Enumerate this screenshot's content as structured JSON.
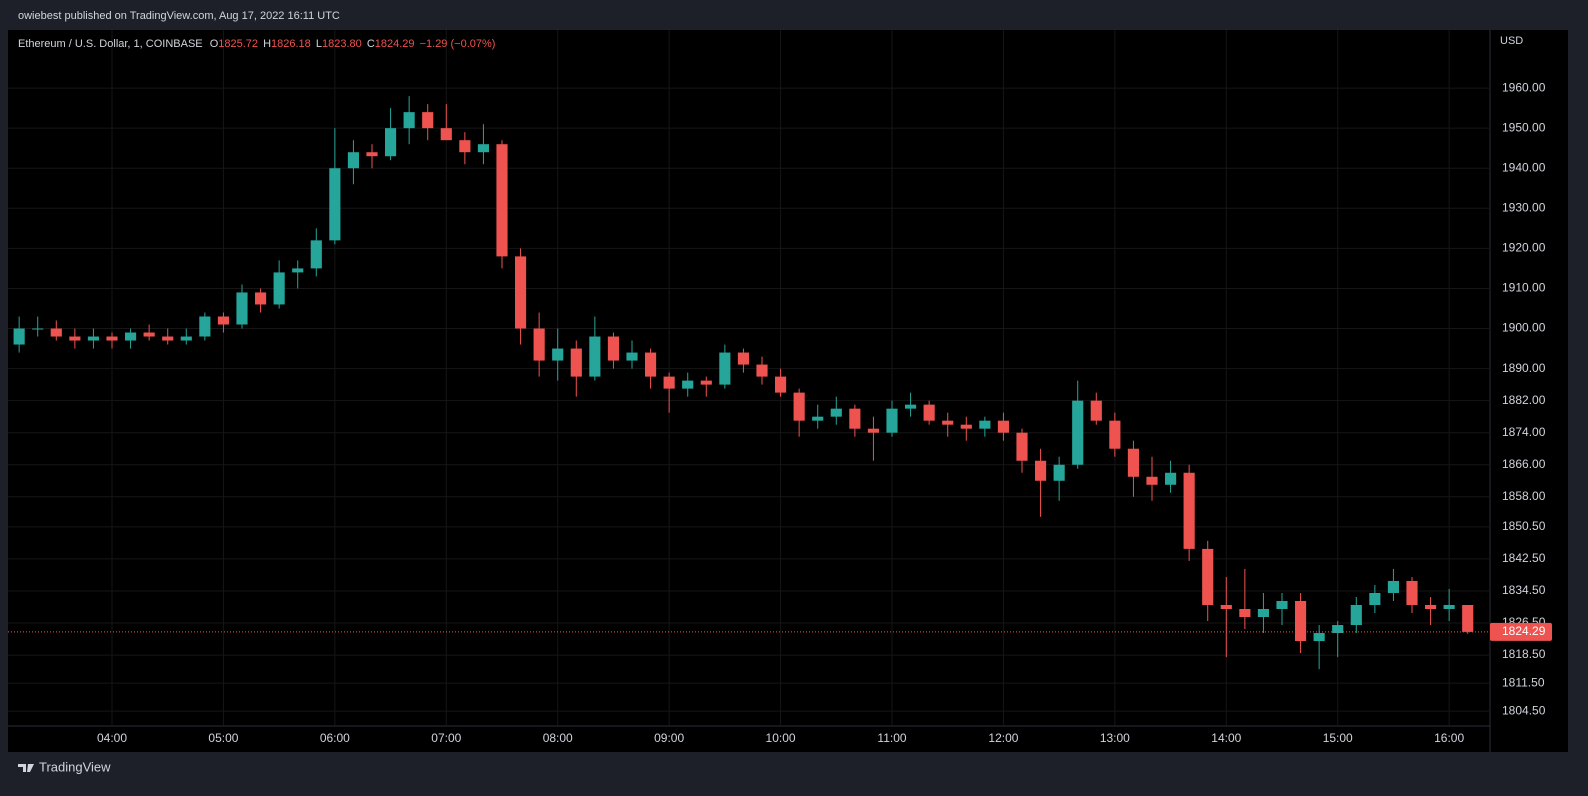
{
  "header": "owiebest published on TradingView.com, Aug 17, 2022 16:11 UTC",
  "footer": "TradingView",
  "chart_data": {
    "type": "candlestick",
    "title": "Ethereum / U.S. Dollar, 1, COINBASE",
    "legend": {
      "o_prefix": "O",
      "open": "1825.72",
      "h_prefix": "H",
      "high": "1826.18",
      "l_prefix": "L",
      "low": "1823.80",
      "c_prefix": "C",
      "close": "1824.29",
      "change": "−1.29 (−0.07%)"
    },
    "currency": "USD",
    "last_price": 1824.29,
    "up_color": "#26a69a",
    "down_color": "#ef5350",
    "grid": true,
    "xlim": [
      "03:04",
      "16:22"
    ],
    "xticks": [
      "04:00",
      "05:00",
      "06:00",
      "07:00",
      "08:00",
      "09:00",
      "10:00",
      "11:00",
      "12:00",
      "13:00",
      "14:00",
      "15:00",
      "16:00"
    ],
    "ylim": [
      1800.8,
      1974.5
    ],
    "yticks": [
      {
        "value": 1960,
        "label": "1960.00"
      },
      {
        "value": 1950,
        "label": "1950.00"
      },
      {
        "value": 1940,
        "label": "1940.00"
      },
      {
        "value": 1930,
        "label": "1930.00"
      },
      {
        "value": 1920,
        "label": "1920.00"
      },
      {
        "value": 1910,
        "label": "1910.00"
      },
      {
        "value": 1900,
        "label": "1900.00"
      },
      {
        "value": 1890,
        "label": "1890.00"
      },
      {
        "value": 1882,
        "label": "1882.00"
      },
      {
        "value": 1874,
        "label": "1874.00"
      },
      {
        "value": 1866,
        "label": "1866.00"
      },
      {
        "value": 1858,
        "label": "1858.00"
      },
      {
        "value": 1850.5,
        "label": "1850.50"
      },
      {
        "value": 1842.5,
        "label": "1842.50"
      },
      {
        "value": 1834.5,
        "label": "1834.50"
      },
      {
        "value": 1826.5,
        "label": "1826.50"
      },
      {
        "value": 1818.5,
        "label": "1818.50"
      },
      {
        "value": 1811.5,
        "label": "1811.50"
      },
      {
        "value": 1804.5,
        "label": "1804.50"
      }
    ],
    "x": [
      "03:10",
      "03:20",
      "03:30",
      "03:40",
      "03:50",
      "04:00",
      "04:10",
      "04:20",
      "04:30",
      "04:40",
      "04:50",
      "05:00",
      "05:10",
      "05:20",
      "05:30",
      "05:40",
      "05:50",
      "06:00",
      "06:10",
      "06:20",
      "06:30",
      "06:40",
      "06:50",
      "07:00",
      "07:10",
      "07:20",
      "07:30",
      "07:40",
      "07:50",
      "08:00",
      "08:10",
      "08:20",
      "08:30",
      "08:40",
      "08:50",
      "09:00",
      "09:10",
      "09:20",
      "09:30",
      "09:40",
      "09:50",
      "10:00",
      "10:10",
      "10:20",
      "10:30",
      "10:40",
      "10:50",
      "11:00",
      "11:10",
      "11:20",
      "11:30",
      "11:40",
      "11:50",
      "12:00",
      "12:10",
      "12:20",
      "12:30",
      "12:40",
      "12:50",
      "13:00",
      "13:10",
      "13:20",
      "13:30",
      "13:40",
      "13:50",
      "14:00",
      "14:10",
      "14:20",
      "14:30",
      "14:40",
      "14:50",
      "15:00",
      "15:10",
      "15:20",
      "15:30",
      "15:40",
      "15:50",
      "16:00",
      "16:10"
    ],
    "open": [
      1896,
      1900,
      1900,
      1898,
      1897,
      1898,
      1897,
      1899,
      1898,
      1897,
      1898,
      1903,
      1901,
      1909,
      1906,
      1914,
      1915,
      1922,
      1940,
      1944,
      1943,
      1950,
      1954,
      1950,
      1947,
      1944,
      1946,
      1918,
      1900,
      1892,
      1895,
      1888,
      1898,
      1892,
      1894,
      1888,
      1885,
      1887,
      1886,
      1894,
      1891,
      1888,
      1884,
      1877,
      1878,
      1880,
      1875,
      1874,
      1880,
      1881,
      1877,
      1876,
      1875,
      1877,
      1874,
      1867,
      1862,
      1866,
      1882,
      1877,
      1870,
      1863,
      1861,
      1864,
      1845,
      1831,
      1830,
      1828,
      1830,
      1832,
      1822,
      1824,
      1826,
      1831,
      1834,
      1837,
      1831,
      1830,
      1831
    ],
    "high": [
      1903,
      1903,
      1902,
      1900,
      1900,
      1899,
      1900,
      1901,
      1900,
      1900,
      1904,
      1904,
      1911,
      1910,
      1917,
      1917,
      1925,
      1950,
      1947,
      1946,
      1955,
      1958,
      1956,
      1956,
      1949,
      1951,
      1947,
      1920,
      1904,
      1900,
      1897,
      1903,
      1899,
      1897,
      1895,
      1889,
      1889,
      1888,
      1896,
      1895,
      1893,
      1890,
      1885,
      1881,
      1883,
      1881,
      1878,
      1882,
      1884,
      1882,
      1879,
      1878,
      1878,
      1879,
      1875,
      1870,
      1868,
      1887,
      1884,
      1879,
      1872,
      1868,
      1867,
      1866,
      1847,
      1838,
      1840,
      1834,
      1834,
      1834,
      1826,
      1827,
      1833,
      1836,
      1840,
      1838,
      1833,
      1835,
      1831
    ],
    "low": [
      1894,
      1898,
      1897,
      1895,
      1895,
      1895,
      1895,
      1897,
      1896,
      1896,
      1897,
      1899,
      1900,
      1904,
      1905,
      1910,
      1913,
      1921,
      1936,
      1940,
      1942,
      1946,
      1947,
      1948,
      1941,
      1941,
      1915,
      1896,
      1888,
      1887,
      1883,
      1887,
      1890,
      1890,
      1885,
      1879,
      1883,
      1883,
      1885,
      1889,
      1886,
      1883,
      1873,
      1875,
      1876,
      1873,
      1867,
      1873,
      1878,
      1876,
      1873,
      1872,
      1873,
      1872,
      1864,
      1853,
      1857,
      1865,
      1876,
      1868,
      1858,
      1857,
      1859,
      1842,
      1827,
      1818,
      1825,
      1824,
      1826,
      1819,
      1815,
      1818,
      1824,
      1829,
      1832,
      1829,
      1826,
      1827,
      1823.8
    ],
    "close": [
      1900,
      1900,
      1898,
      1897,
      1898,
      1897,
      1899,
      1898,
      1897,
      1898,
      1903,
      1901,
      1909,
      1906,
      1914,
      1915,
      1922,
      1940,
      1944,
      1943,
      1950,
      1954,
      1950,
      1947,
      1944,
      1946,
      1918,
      1900,
      1892,
      1895,
      1888,
      1898,
      1892,
      1894,
      1888,
      1885,
      1887,
      1886,
      1894,
      1891,
      1888,
      1884,
      1877,
      1878,
      1880,
      1875,
      1874,
      1880,
      1881,
      1877,
      1876,
      1875,
      1877,
      1874,
      1867,
      1862,
      1866,
      1882,
      1877,
      1870,
      1863,
      1861,
      1864,
      1845,
      1831,
      1830,
      1828,
      1830,
      1832,
      1822,
      1824,
      1826,
      1831,
      1834,
      1837,
      1831,
      1830,
      1831,
      1824.29
    ]
  }
}
